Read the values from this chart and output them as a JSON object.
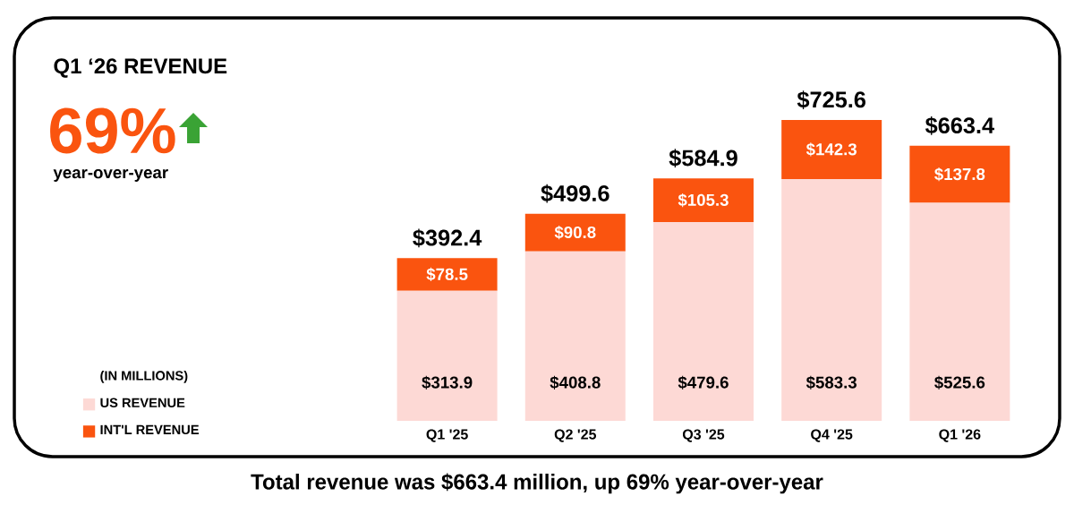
{
  "chart_data": {
    "type": "bar",
    "stacked": true,
    "title": "Q1 ‘26 REVENUE",
    "categories": [
      "Q1 '25",
      "Q2 '25",
      "Q3 '25",
      "Q4 '25",
      "Q1 '26"
    ],
    "series": [
      {
        "name": "US REVENUE",
        "color": "#fdd9d5",
        "values": [
          313.9,
          408.8,
          479.6,
          583.3,
          525.6
        ],
        "value_labels": [
          "$313.9",
          "$408.8",
          "$479.6",
          "$583.3",
          "$525.6"
        ]
      },
      {
        "name": "INT'L REVENUE",
        "color": "#fa540f",
        "values": [
          78.5,
          90.8,
          105.3,
          142.3,
          137.8
        ],
        "value_labels": [
          "$78.5",
          "$90.8",
          "$105.3",
          "$142.3",
          "$137.8"
        ]
      }
    ],
    "totals": [
      "$392.4",
      "$499.6",
      "$584.9",
      "$725.6",
      "$663.4"
    ],
    "legend": "bottom left",
    "legend_title": "(IN MILLIONS)",
    "annotations": [
      "69%",
      "year-over-year",
      "Total revenue was $663.4 million, up 69% year-over-year"
    ]
  }
}
